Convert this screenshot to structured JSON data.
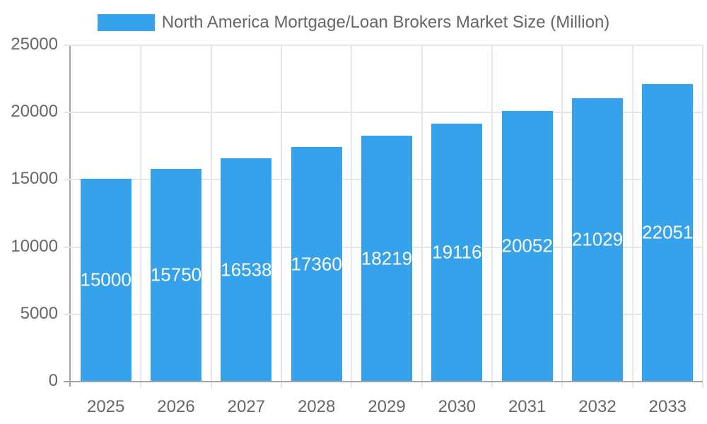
{
  "legend": {
    "label": "North America Mortgage/Loan Brokers Market Size (Million)",
    "swatch_color": "#36a2eb"
  },
  "chart_data": {
    "type": "bar",
    "title": "North America Mortgage/Loan Brokers Market Size (Million)",
    "categories": [
      "2025",
      "2026",
      "2027",
      "2028",
      "2029",
      "2030",
      "2031",
      "2032",
      "2033"
    ],
    "series": [
      {
        "name": "North America Mortgage/Loan Brokers Market Size (Million)",
        "values": [
          15000,
          15750,
          16538,
          17360,
          18219,
          19116,
          20052,
          21029,
          22051
        ]
      }
    ],
    "xlabel": "",
    "ylabel": "",
    "ylim": [
      0,
      25000
    ],
    "y_ticks": [
      0,
      5000,
      10000,
      15000,
      20000,
      25000
    ],
    "grid": true,
    "legend_position": "top",
    "data_labels_position": "inside-center"
  },
  "colors": {
    "bar": "#36a2eb",
    "bar_label_text": "#ffffff",
    "grid_line": "#e6e6e6",
    "axis_line": "#a3a3a3",
    "tick_text": "#666666"
  }
}
